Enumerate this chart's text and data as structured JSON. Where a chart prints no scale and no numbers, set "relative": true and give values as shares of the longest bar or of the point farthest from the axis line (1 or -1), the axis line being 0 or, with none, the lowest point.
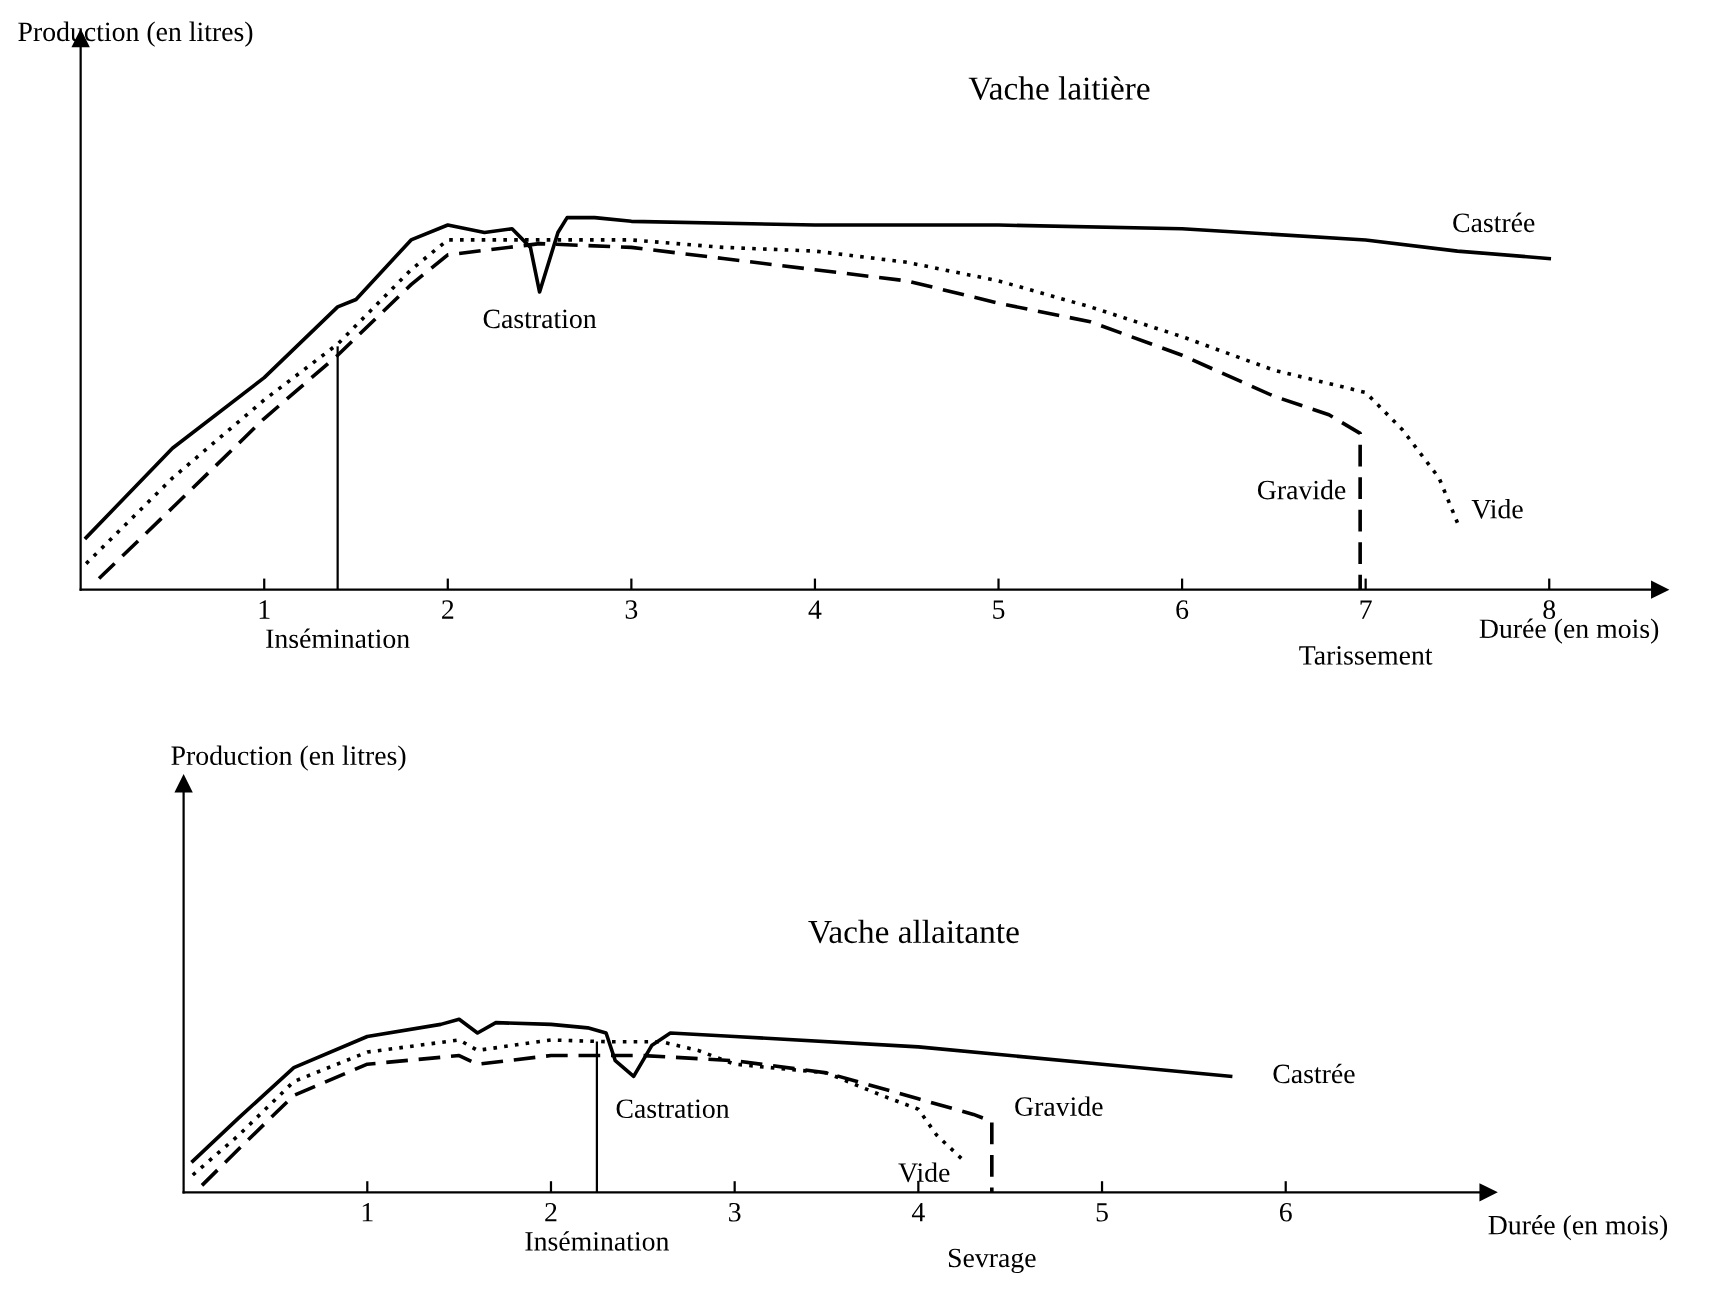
{
  "chart_data": [
    {
      "type": "line",
      "title": "Vache laitière",
      "ylabel": "Production (en litres)",
      "xlabel": "Durée (en mois)",
      "relative": true,
      "xlim": [
        0,
        8.6
      ],
      "xticks": [
        1,
        2,
        3,
        4,
        5,
        6,
        7,
        8
      ],
      "grid": false,
      "legend": false,
      "marker": "none",
      "series": [
        {
          "name": "Castrée",
          "color": "#000000",
          "line_style": "solid",
          "x": [
            0.03,
            0.5,
            1,
            1.4,
            1.5,
            1.8,
            2.0,
            2.2,
            2.35,
            2.45,
            2.5,
            2.6,
            2.65,
            2.8,
            3,
            4,
            5,
            6,
            7,
            7.5,
            8
          ],
          "values": [
            0.14,
            0.38,
            0.57,
            0.76,
            0.78,
            0.94,
            0.98,
            0.96,
            0.97,
            0.92,
            0.8,
            0.96,
            1.0,
            1.0,
            0.99,
            0.98,
            0.98,
            0.97,
            0.94,
            0.91,
            0.89
          ]
        },
        {
          "name": "Vide",
          "color": "#000000",
          "line_style": "dotted",
          "x": [
            0.03,
            0.5,
            1,
            1.4,
            1.8,
            2,
            2.5,
            3,
            3.5,
            4,
            4.5,
            5,
            5.5,
            6,
            6.5,
            7,
            7.2,
            7.4,
            7.5
          ],
          "values": [
            0.07,
            0.3,
            0.51,
            0.66,
            0.86,
            0.94,
            0.94,
            0.94,
            0.92,
            0.91,
            0.88,
            0.83,
            0.76,
            0.68,
            0.59,
            0.53,
            0.43,
            0.3,
            0.18
          ]
        },
        {
          "name": "Gravide",
          "color": "#000000",
          "line_style": "dashed",
          "x": [
            0.1,
            0.5,
            1,
            1.4,
            1.8,
            2,
            2.5,
            3,
            3.5,
            4,
            4.5,
            5,
            5.5,
            6,
            6.5,
            6.8,
            6.97,
            6.97
          ],
          "values": [
            0.03,
            0.22,
            0.46,
            0.63,
            0.82,
            0.9,
            0.93,
            0.92,
            0.89,
            0.86,
            0.83,
            0.77,
            0.72,
            0.63,
            0.52,
            0.47,
            0.42,
            0
          ]
        }
      ],
      "annotations": [
        {
          "text": "Castration",
          "x": 2.5,
          "y": 0.8
        },
        {
          "text": "Tarissement",
          "x": 7,
          "y": 0
        }
      ],
      "ref_lines": [
        {
          "axis": "x",
          "value": 1.4,
          "label": "Insémination",
          "color": "#000000",
          "line_style": "solid"
        }
      ]
    },
    {
      "type": "line",
      "title": "Vache allaitante",
      "ylabel": "Production (en litres)",
      "xlabel": "Durée (en mois)",
      "relative": true,
      "xlim": [
        0,
        7.1
      ],
      "xticks": [
        1,
        2,
        3,
        4,
        5,
        6
      ],
      "grid": false,
      "legend": false,
      "marker": "none",
      "series": [
        {
          "name": "Castrée",
          "color": "#000000",
          "line_style": "solid",
          "x": [
            0.05,
            0.3,
            0.6,
            1,
            1.4,
            1.5,
            1.6,
            1.7,
            2,
            2.2,
            2.3,
            2.35,
            2.45,
            2.55,
            2.65,
            3,
            4,
            5,
            5.7
          ],
          "values": [
            0.18,
            0.43,
            0.72,
            0.9,
            0.97,
            1.0,
            0.92,
            0.98,
            0.97,
            0.95,
            0.92,
            0.76,
            0.67,
            0.85,
            0.92,
            0.9,
            0.84,
            0.74,
            0.67
          ]
        },
        {
          "name": "Vide",
          "color": "#000000",
          "line_style": "dotted",
          "x": [
            0.05,
            0.3,
            0.6,
            1,
            1.5,
            1.6,
            2,
            2.3,
            2.6,
            2.8,
            3,
            3.5,
            3.8,
            4,
            4.1,
            4.2,
            4.25
          ],
          "values": [
            0.1,
            0.33,
            0.64,
            0.81,
            0.88,
            0.82,
            0.88,
            0.87,
            0.87,
            0.82,
            0.74,
            0.69,
            0.56,
            0.48,
            0.33,
            0.23,
            0.18
          ]
        },
        {
          "name": "Gravide",
          "color": "#000000",
          "line_style": "dashed",
          "x": [
            0.1,
            0.3,
            0.6,
            1,
            1.5,
            1.6,
            2,
            2.5,
            3,
            3.5,
            4,
            4.3,
            4.4,
            4.4
          ],
          "values": [
            0.04,
            0.25,
            0.56,
            0.74,
            0.79,
            0.74,
            0.79,
            0.79,
            0.76,
            0.69,
            0.54,
            0.45,
            0.41,
            0
          ]
        }
      ],
      "annotations": [
        {
          "text": "Castration",
          "x": 2.45,
          "y": 0.67
        },
        {
          "text": "Sevrage",
          "x": 4.4,
          "y": 0
        }
      ],
      "ref_lines": [
        {
          "axis": "x",
          "value": 2.25,
          "label": "Insémination",
          "color": "#000000",
          "line_style": "solid"
        }
      ]
    }
  ]
}
